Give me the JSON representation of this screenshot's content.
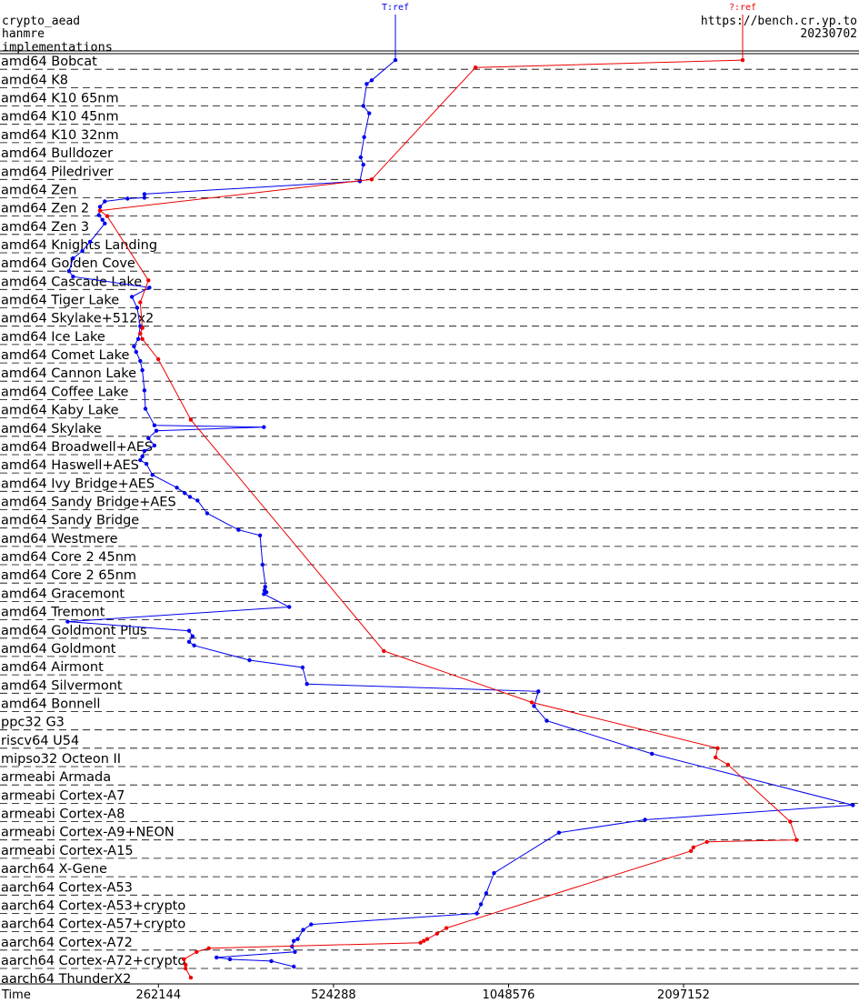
{
  "header": {
    "line1": "crypto_aead",
    "line2": "hanmre",
    "line3": "implementations",
    "url": "https://bench.cr.yp.to",
    "date": "20230702"
  },
  "chart_data": {
    "type": "line",
    "title": "",
    "xlabel": "Time",
    "x_scale": "log2",
    "xlim": [
      140000,
      4200000
    ],
    "x_ticks": [
      262144,
      524288,
      1048576,
      2097152
    ],
    "x_tick_labels": [
      "262144",
      "524288",
      "1048576",
      "2097152"
    ],
    "grid": "dashed horizontal row separators",
    "categories": [
      "amd64 Bobcat",
      "amd64 K8",
      "amd64 K10 65nm",
      "amd64 K10 45nm",
      "amd64 K10 32nm",
      "amd64 Bulldozer",
      "amd64 Piledriver",
      "amd64 Zen",
      "amd64 Zen 2",
      "amd64 Zen 3",
      "amd64 Knights Landing",
      "amd64 Golden Cove",
      "amd64 Cascade Lake",
      "amd64 Tiger Lake",
      "amd64 Skylake+512x2",
      "amd64 Ice Lake",
      "amd64 Comet Lake",
      "amd64 Cannon Lake",
      "amd64 Coffee Lake",
      "amd64 Kaby Lake",
      "amd64 Skylake",
      "amd64 Broadwell+AES",
      "amd64 Haswell+AES",
      "amd64 Ivy Bridge+AES",
      "amd64 Sandy Bridge+AES",
      "amd64 Sandy Bridge",
      "amd64 Westmere",
      "amd64 Core 2 45nm",
      "amd64 Core 2 65nm",
      "amd64 Gracemont",
      "amd64 Tremont",
      "amd64 Goldmont Plus",
      "amd64 Goldmont",
      "amd64 Airmont",
      "amd64 Silvermont",
      "amd64 Bonnell",
      "ppc32 G3",
      "riscv64 U54",
      "mipso32 Octeon II",
      "armeabi Armada",
      "armeabi Cortex-A7",
      "armeabi Cortex-A8",
      "armeabi Cortex-A9+NEON",
      "armeabi Cortex-A15",
      "aarch64 X-Gene",
      "aarch64 Cortex-A53",
      "aarch64 Cortex-A53+crypto",
      "aarch64 Cortex-A57+crypto",
      "aarch64 Cortex-A72",
      "aarch64 Cortex-A72+crypto",
      "aarch64 ThunderX2"
    ],
    "series": [
      {
        "name": "T:ref",
        "color": "#0000ee",
        "points": [
          [
            670000,
            0
          ],
          [
            610000,
            1.1
          ],
          [
            598000,
            1.3
          ],
          [
            590000,
            2.5
          ],
          [
            604000,
            2.9
          ],
          [
            592000,
            4.2
          ],
          [
            584000,
            5.3
          ],
          [
            590000,
            5.7
          ],
          [
            582000,
            6.6
          ],
          [
            248000,
            7.3
          ],
          [
            248000,
            7.5
          ],
          [
            232000,
            7.55
          ],
          [
            212000,
            7.7
          ],
          [
            208000,
            8.0
          ],
          [
            207000,
            8.45
          ],
          [
            210000,
            8.7
          ],
          [
            212000,
            8.9
          ],
          [
            200000,
            9.9
          ],
          [
            194000,
            10.4
          ],
          [
            187000,
            10.8
          ],
          [
            184000,
            11.5
          ],
          [
            187000,
            11.8
          ],
          [
            253000,
            12.4
          ],
          [
            236000,
            12.9
          ],
          [
            241000,
            13.5
          ],
          [
            244000,
            14.5
          ],
          [
            242000,
            15.2
          ],
          [
            238000,
            15.6
          ],
          [
            240000,
            15.9
          ],
          [
            244000,
            16.4
          ],
          [
            246000,
            16.9
          ],
          [
            248000,
            18.0
          ],
          [
            249000,
            19.0
          ],
          [
            258000,
            19.9
          ],
          [
            398000,
            20.0
          ],
          [
            260000,
            20.2
          ],
          [
            252000,
            20.6
          ],
          [
            258000,
            21.0
          ],
          [
            248000,
            21.3
          ],
          [
            246000,
            21.6
          ],
          [
            244000,
            21.8
          ],
          [
            250000,
            22.0
          ],
          [
            256000,
            22.6
          ],
          [
            282000,
            23.3
          ],
          [
            291000,
            23.6
          ],
          [
            297000,
            23.8
          ],
          [
            306000,
            24.0
          ],
          [
            318000,
            24.7
          ],
          [
            360000,
            25.6
          ],
          [
            392000,
            25.9
          ],
          [
            396000,
            27.5
          ],
          [
            402000,
            29.0
          ],
          [
            400000,
            28.7
          ],
          [
            399000,
            28.9
          ],
          [
            398000,
            29.1
          ],
          [
            440000,
            29.8
          ],
          [
            183000,
            30.6
          ],
          [
            296000,
            31.1
          ],
          [
            300000,
            31.4
          ],
          [
            296000,
            31.7
          ],
          [
            302000,
            31.9
          ],
          [
            376000,
            32.7
          ],
          [
            464000,
            33.1
          ],
          [
            472000,
            34.0
          ],
          [
            1180000,
            34.4
          ],
          [
            1160000,
            35.2
          ],
          [
            1220000,
            36.0
          ],
          [
            1850000,
            37.8
          ],
          [
            4100000,
            40.6
          ],
          [
            1800000,
            41.4
          ],
          [
            1280000,
            42.1
          ],
          [
            990000,
            44.3
          ],
          [
            960000,
            45.4
          ],
          [
            940000,
            46.0
          ],
          [
            925000,
            46.5
          ],
          [
            480000,
            47.1
          ],
          [
            465000,
            47.4
          ],
          [
            455000,
            47.9
          ],
          [
            448000,
            48.0
          ],
          [
            445000,
            48.3
          ],
          [
            450000,
            48.6
          ],
          [
            330000,
            48.9
          ],
          [
            348000,
            49.0
          ],
          [
            410000,
            49.1
          ],
          [
            448000,
            49.4
          ]
        ]
      },
      {
        "name": "?:ref",
        "color": "#ee0000",
        "points": [
          [
            2650000,
            0
          ],
          [
            920000,
            0.4
          ],
          [
            610000,
            6.5
          ],
          [
            208000,
            8.2
          ],
          [
            214000,
            8.5
          ],
          [
            252000,
            12.0
          ],
          [
            244000,
            13.2
          ],
          [
            246000,
            14.6
          ],
          [
            244000,
            14.9
          ],
          [
            246000,
            15.2
          ],
          [
            262000,
            16.3
          ],
          [
            298000,
            19.6
          ],
          [
            640000,
            32.2
          ],
          [
            1150000,
            35.0
          ],
          [
            2400000,
            37.5
          ],
          [
            2380000,
            38.0
          ],
          [
            2500000,
            38.4
          ],
          [
            3200000,
            41.5
          ],
          [
            3280000,
            42.5
          ],
          [
            2300000,
            42.6
          ],
          [
            2180000,
            42.9
          ],
          [
            2160000,
            43.1
          ],
          [
            820000,
            47.3
          ],
          [
            790000,
            47.6
          ],
          [
            760000,
            47.9
          ],
          [
            750000,
            48.0
          ],
          [
            740000,
            48.1
          ],
          [
            320000,
            48.4
          ],
          [
            305000,
            48.6
          ],
          [
            290000,
            49.0
          ],
          [
            292000,
            49.3
          ],
          [
            292000,
            49.5
          ],
          [
            298000,
            50.0
          ]
        ]
      }
    ]
  }
}
